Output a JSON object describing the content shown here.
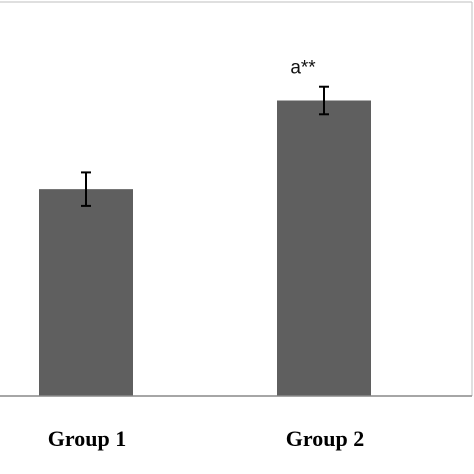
{
  "chart_data": {
    "type": "bar",
    "categories": [
      "Group 1",
      "Group 2"
    ],
    "values": [
      2.1,
      3.0
    ],
    "error": [
      0.17,
      0.14
    ],
    "annotations": [
      "",
      "a**"
    ],
    "ylim": [
      0,
      4
    ],
    "xlabel": "",
    "ylabel": "",
    "title": "",
    "grid": false,
    "colors": {
      "bar": "#5f5f5f",
      "axis": "#888888",
      "frame": "#bfbfbf",
      "error": "#000000"
    }
  }
}
